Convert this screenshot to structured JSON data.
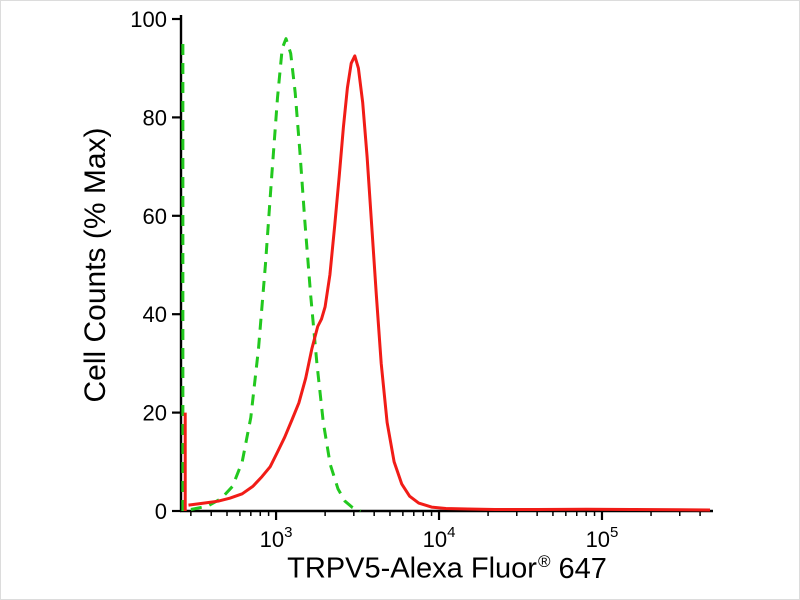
{
  "window": {
    "background": "#ffffff",
    "border_color": "#dcdcdc"
  },
  "chart_data": {
    "type": "line",
    "subtype": "flow-cytometry-histogram",
    "title": "",
    "xlabel": {
      "text": "TRPV5-Alexa Fluor",
      "superscript": "®",
      "suffix": "647"
    },
    "ylabel": "Cell Counts (% Max)",
    "x_scale": "log10",
    "x_range": [
      261,
      480000
    ],
    "x_major_ticks": [
      1000,
      10000,
      100000
    ],
    "x_tick_label_base": "10",
    "y_range": [
      0,
      100
    ],
    "y_ticks": [
      0,
      20,
      40,
      60,
      80,
      100
    ],
    "grid": false,
    "legend": "none",
    "colors": {
      "axis": "#000000",
      "green": "#22c81e",
      "red": "#f11c17"
    },
    "series": [
      {
        "id": "green-dashed-curve",
        "color": "#22c81e",
        "dash": [
          11,
          8
        ],
        "width": 3,
        "edge_spike": {
          "x": 268,
          "top": 96
        },
        "points": [
          [
            300,
            0.3
          ],
          [
            380,
            1
          ],
          [
            460,
            2.5
          ],
          [
            540,
            5
          ],
          [
            620,
            10
          ],
          [
            700,
            19
          ],
          [
            780,
            33
          ],
          [
            860,
            50
          ],
          [
            940,
            68
          ],
          [
            1020,
            84
          ],
          [
            1090,
            94
          ],
          [
            1150,
            96
          ],
          [
            1230,
            93
          ],
          [
            1310,
            85
          ],
          [
            1400,
            73
          ],
          [
            1500,
            59
          ],
          [
            1630,
            44
          ],
          [
            1780,
            30
          ],
          [
            1950,
            18
          ],
          [
            2150,
            9.5
          ],
          [
            2400,
            4.5
          ],
          [
            2650,
            2
          ],
          [
            2950,
            0.7
          ],
          [
            3300,
            0
          ]
        ]
      },
      {
        "id": "red-solid-curve",
        "color": "#f11c17",
        "dash": null,
        "width": 3,
        "edge_spike": {
          "x": 277,
          "top": 20
        },
        "points": [
          [
            290,
            1.2
          ],
          [
            360,
            1.6
          ],
          [
            440,
            2
          ],
          [
            520,
            2.6
          ],
          [
            620,
            3.5
          ],
          [
            720,
            5
          ],
          [
            820,
            7
          ],
          [
            920,
            9
          ],
          [
            1020,
            12
          ],
          [
            1130,
            15
          ],
          [
            1250,
            18.5
          ],
          [
            1380,
            22
          ],
          [
            1520,
            27
          ],
          [
            1660,
            33
          ],
          [
            1800,
            37.5
          ],
          [
            1900,
            39
          ],
          [
            2000,
            41.5
          ],
          [
            2140,
            48
          ],
          [
            2290,
            58
          ],
          [
            2440,
            68
          ],
          [
            2590,
            78
          ],
          [
            2740,
            86
          ],
          [
            2890,
            91
          ],
          [
            3040,
            92.5
          ],
          [
            3200,
            90
          ],
          [
            3400,
            83
          ],
          [
            3620,
            72
          ],
          [
            3860,
            58
          ],
          [
            4120,
            44
          ],
          [
            4420,
            30
          ],
          [
            4800,
            18
          ],
          [
            5300,
            10
          ],
          [
            5900,
            5.5
          ],
          [
            6600,
            3
          ],
          [
            7500,
            1.6
          ],
          [
            9000,
            0.8
          ],
          [
            11000,
            0.5
          ],
          [
            15000,
            0.4
          ],
          [
            22000,
            0.3
          ],
          [
            40000,
            0.3
          ],
          [
            80000,
            0.35
          ],
          [
            150000,
            0.3
          ],
          [
            300000,
            0.25
          ],
          [
            460000,
            0.2
          ]
        ]
      }
    ]
  }
}
